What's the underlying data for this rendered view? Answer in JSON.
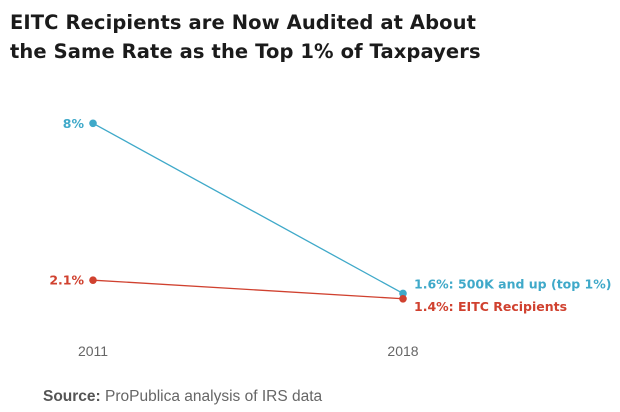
{
  "title": {
    "line1": "EITC Recipients are Now Audited at About",
    "line2": "the Same Rate as the Top 1% of Taxpayers"
  },
  "source": {
    "label": "Source:",
    "text": "ProPublica analysis of IRS data"
  },
  "colors": {
    "top1": "#3fa9c9",
    "eitc": "#d0412f",
    "axis_text": "#666666",
    "title": "#1b1b1b"
  },
  "chart_data": {
    "type": "line",
    "x": [
      "2011",
      "2018"
    ],
    "ylim": [
      0,
      8.5
    ],
    "grid": false,
    "series": [
      {
        "name": "500K and up (top 1%)",
        "values": [
          8,
          1.6
        ],
        "start_label": "8%",
        "end_label": "1.6%: 500K and up (top 1%)",
        "color": "#3fa9c9"
      },
      {
        "name": "EITC Recipients",
        "values": [
          2.1,
          1.4
        ],
        "start_label": "2.1%",
        "end_label": "1.4%: EITC Recipients",
        "color": "#d0412f"
      }
    ]
  }
}
